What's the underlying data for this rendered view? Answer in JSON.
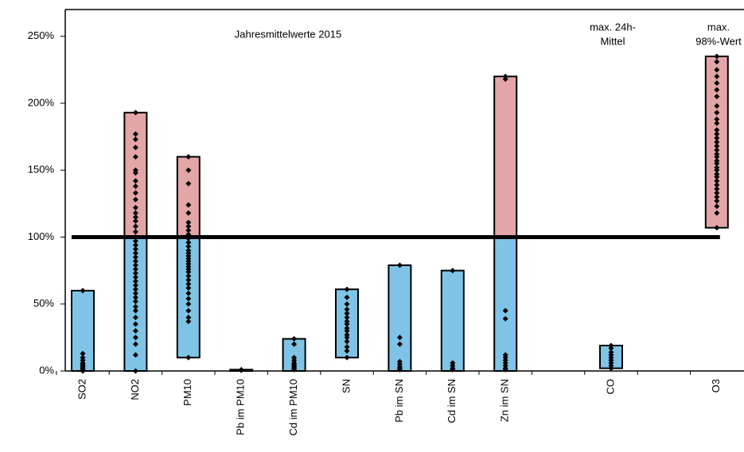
{
  "chart_data": {
    "type": "range",
    "categories": [
      "SO2",
      "NO2",
      "PM10",
      "Pb im PM10",
      "Cd im PM10",
      "SN",
      "Pb im SN",
      "Cd im SN",
      "Zn im SN",
      null,
      "CO",
      null,
      "O3"
    ],
    "ranges": [
      [
        0,
        60
      ],
      [
        0,
        193
      ],
      [
        10,
        160
      ],
      [
        0,
        1
      ],
      [
        0,
        24
      ],
      [
        10,
        61
      ],
      [
        0,
        79
      ],
      [
        0,
        75
      ],
      [
        0,
        220
      ],
      null,
      [
        2,
        19
      ],
      null,
      [
        107,
        235
      ]
    ],
    "points": [
      [
        60,
        13,
        10,
        8,
        6,
        5,
        4,
        3,
        2,
        1,
        0
      ],
      [
        193,
        177,
        173,
        167,
        160,
        150,
        148,
        142,
        138,
        133,
        128,
        122,
        118,
        115,
        112,
        108,
        104,
        100,
        97,
        94,
        91,
        88,
        85,
        82,
        79,
        76,
        73,
        70,
        67,
        64,
        61,
        58,
        55,
        52,
        48,
        45,
        40,
        35,
        30,
        25,
        20,
        12,
        0
      ],
      [
        160,
        150,
        140,
        124,
        118,
        111,
        108,
        105,
        102,
        99,
        96,
        93,
        90,
        88,
        86,
        84,
        82,
        80,
        78,
        76,
        74,
        71,
        68,
        65,
        62,
        58,
        54,
        50,
        45,
        40,
        37,
        10
      ],
      [
        1,
        0.5
      ],
      [
        24,
        20,
        10,
        8,
        6,
        5,
        4,
        3,
        2,
        1
      ],
      [
        61,
        55,
        50,
        46,
        43,
        40,
        37,
        35,
        32,
        30,
        27,
        25,
        22,
        18,
        15,
        10
      ],
      [
        79,
        25,
        20,
        7,
        5,
        3,
        2,
        1
      ],
      [
        75,
        6,
        4,
        2,
        1
      ],
      [
        220,
        218,
        45,
        39,
        12,
        10,
        8,
        6,
        4,
        2,
        1
      ],
      null,
      [
        19,
        17,
        14,
        12,
        10,
        8,
        6,
        4,
        2
      ],
      null,
      [
        235,
        231,
        225,
        220,
        215,
        210,
        205,
        198,
        193,
        188,
        185,
        180,
        177,
        174,
        171,
        168,
        165,
        162,
        160,
        157,
        155,
        152,
        150,
        147,
        145,
        142,
        139,
        136,
        133,
        130,
        127,
        123,
        118,
        107
      ]
    ],
    "threshold": 100,
    "colors": {
      "below": "#7fc4e6",
      "above": "#e3a6a6",
      "points": "#000000"
    },
    "ylim": [
      0,
      270
    ],
    "yticks": [
      {
        "value": 0,
        "label": "0%"
      },
      {
        "value": 50,
        "label": "50%"
      },
      {
        "value": 100,
        "label": "100%"
      },
      {
        "value": 150,
        "label": "150%"
      },
      {
        "value": 200,
        "label": "200%"
      },
      {
        "value": 250,
        "label": "250%"
      }
    ],
    "annotations": [
      "Jahresmittelwerte 2015",
      "max. 24h-",
      "Mittel",
      "max.",
      "98%-Wert"
    ]
  }
}
